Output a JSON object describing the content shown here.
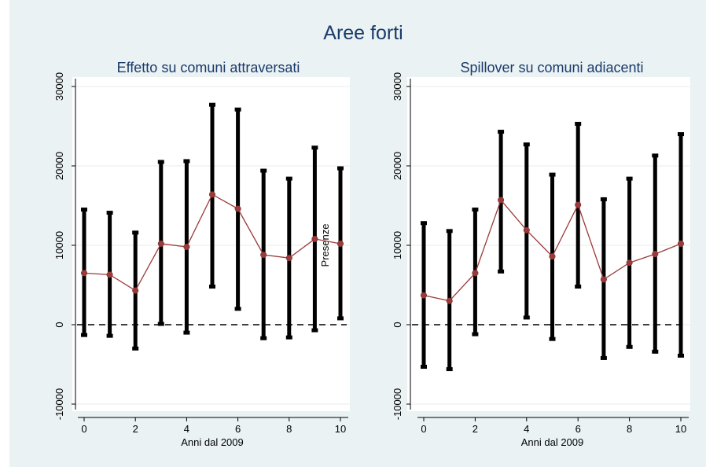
{
  "title": "Aree forti",
  "colors": {
    "background": "#eaf2f3",
    "plot_background": "#ffffff",
    "title": "#1a3a6b",
    "estimate": "#9b3a3a",
    "ci": "#000000"
  },
  "chart_data": [
    {
      "type": "line",
      "title": "Effetto su comuni attraversati",
      "xlabel": "Anni dal 2009",
      "ylabel": "Presenze",
      "xlim": [
        -0.3,
        10.3
      ],
      "ylim": [
        -10000,
        30000
      ],
      "xticks": [
        0,
        2,
        4,
        6,
        8,
        10
      ],
      "xtick_labels": [
        "0",
        "2",
        "4",
        "6",
        "8",
        "10"
      ],
      "yticks": [
        -10000,
        0,
        10000,
        20000,
        30000
      ],
      "ytick_labels": [
        "-10000",
        "0",
        "10000",
        "20000",
        "30000"
      ],
      "reference_line": {
        "y": 0,
        "style": "dashed"
      },
      "grid": true,
      "x": [
        0,
        1,
        2,
        3,
        4,
        5,
        6,
        7,
        8,
        9,
        10
      ],
      "series": [
        {
          "kind": "point-estimate",
          "values": [
            6500,
            6300,
            4300,
            10200,
            9800,
            16400,
            14600,
            8800,
            8400,
            10800,
            10200
          ]
        },
        {
          "kind": "ci-lower",
          "values": [
            -1300,
            -1400,
            -3000,
            100,
            -1000,
            4800,
            2000,
            -1700,
            -1600,
            -700,
            800
          ]
        },
        {
          "kind": "ci-upper",
          "values": [
            14500,
            14100,
            11600,
            20500,
            20600,
            27700,
            27100,
            19400,
            18400,
            22300,
            19700
          ]
        }
      ]
    },
    {
      "type": "line",
      "title": "Spillover su comuni adiacenti",
      "xlabel": "Anni dal 2009",
      "ylabel": "Presenze",
      "xlim": [
        -0.3,
        10.3
      ],
      "ylim": [
        -10000,
        30000
      ],
      "xticks": [
        0,
        2,
        4,
        6,
        8,
        10
      ],
      "xtick_labels": [
        "0",
        "2",
        "4",
        "6",
        "8",
        "10"
      ],
      "yticks": [
        -10000,
        0,
        10000,
        20000,
        30000
      ],
      "ytick_labels": [
        "-10000",
        "0",
        "10000",
        "20000",
        "30000"
      ],
      "reference_line": {
        "y": 0,
        "style": "dashed"
      },
      "grid": true,
      "x": [
        0,
        1,
        2,
        3,
        4,
        5,
        6,
        7,
        8,
        9,
        10
      ],
      "series": [
        {
          "kind": "point-estimate",
          "values": [
            3700,
            3000,
            6500,
            15700,
            11900,
            8600,
            15100,
            5700,
            7800,
            8900,
            10200
          ]
        },
        {
          "kind": "ci-lower",
          "values": [
            -5300,
            -5600,
            -1200,
            6700,
            900,
            -1800,
            4800,
            -4200,
            -2800,
            -3400,
            -3900
          ]
        },
        {
          "kind": "ci-upper",
          "values": [
            12800,
            11800,
            14500,
            24300,
            22700,
            18900,
            25300,
            15800,
            18400,
            21300,
            24000
          ]
        }
      ]
    }
  ]
}
